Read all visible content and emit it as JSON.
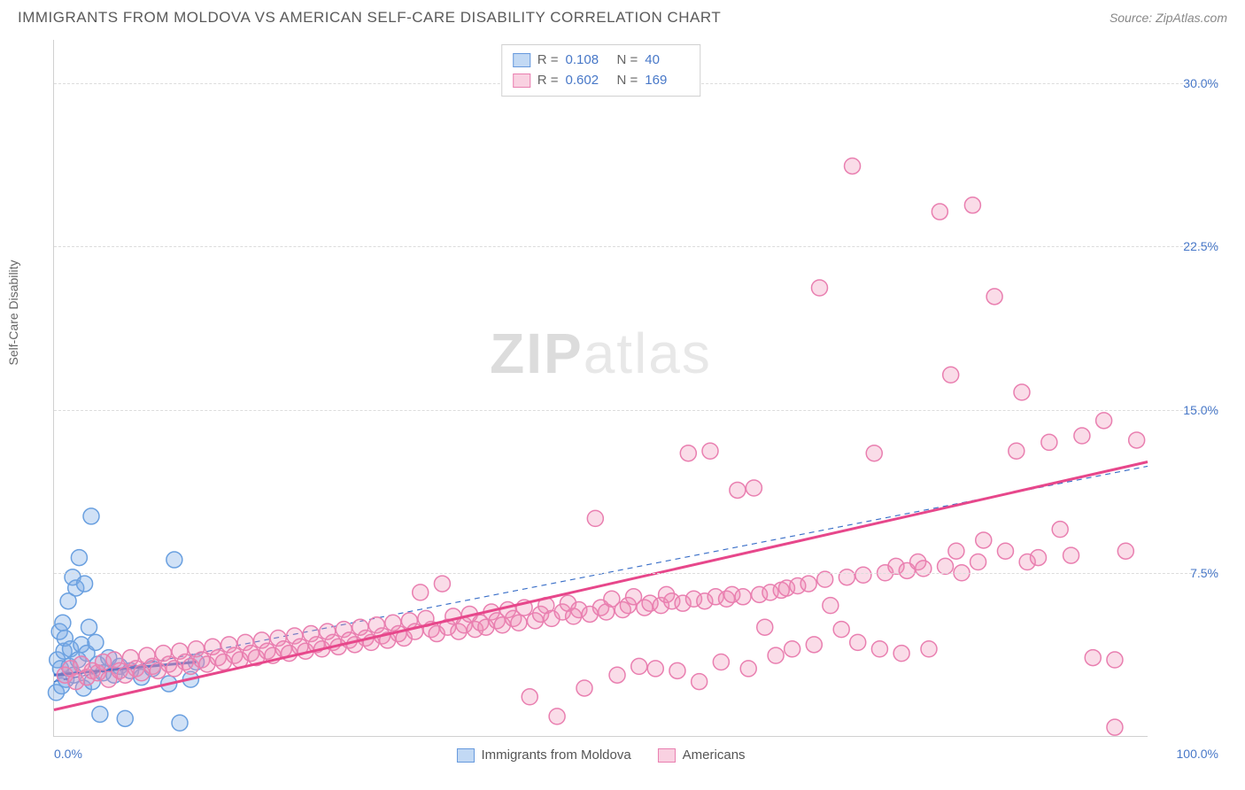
{
  "title": "IMMIGRANTS FROM MOLDOVA VS AMERICAN SELF-CARE DISABILITY CORRELATION CHART",
  "source": "Source: ZipAtlas.com",
  "ylabel": "Self-Care Disability",
  "watermark_zip": "ZIP",
  "watermark_atlas": "atlas",
  "chart": {
    "type": "scatter",
    "xlim": [
      0,
      100
    ],
    "ylim": [
      0,
      32
    ],
    "yticks": [
      {
        "v": 7.5,
        "label": "7.5%"
      },
      {
        "v": 15.0,
        "label": "15.0%"
      },
      {
        "v": 22.5,
        "label": "22.5%"
      },
      {
        "v": 30.0,
        "label": "30.0%"
      }
    ],
    "xticks": {
      "left": "0.0%",
      "right": "100.0%"
    },
    "marker_radius": 9,
    "marker_stroke_width": 1.5,
    "series": [
      {
        "name": "Immigrants from Moldova",
        "color_fill": "rgba(120,170,230,0.35)",
        "color_stroke": "#6aa0e0",
        "R": "0.108",
        "N": "40",
        "trend": {
          "x1": 0,
          "y1": 2.8,
          "x2": 13,
          "y2": 3.4,
          "dash": false,
          "width": 3,
          "color": "#3a6fc8"
        },
        "trend_dash": {
          "x1": 0,
          "y1": 2.5,
          "x2": 100,
          "y2": 12.4,
          "dash": true,
          "width": 1.2,
          "color": "#3a6fc8"
        },
        "points": [
          [
            0.2,
            2.0
          ],
          [
            0.3,
            3.5
          ],
          [
            0.5,
            4.8
          ],
          [
            0.6,
            3.1
          ],
          [
            0.7,
            2.3
          ],
          [
            0.8,
            5.2
          ],
          [
            0.9,
            3.9
          ],
          [
            1.0,
            4.5
          ],
          [
            1.1,
            2.6
          ],
          [
            1.3,
            6.2
          ],
          [
            1.4,
            3.2
          ],
          [
            1.5,
            4.0
          ],
          [
            1.7,
            7.3
          ],
          [
            1.8,
            2.8
          ],
          [
            2.0,
            6.8
          ],
          [
            2.2,
            3.5
          ],
          [
            2.3,
            8.2
          ],
          [
            2.5,
            4.2
          ],
          [
            2.7,
            2.2
          ],
          [
            2.8,
            7.0
          ],
          [
            3.0,
            3.8
          ],
          [
            3.2,
            5.0
          ],
          [
            3.4,
            10.1
          ],
          [
            3.5,
            2.5
          ],
          [
            3.8,
            4.3
          ],
          [
            4.0,
            3.3
          ],
          [
            4.2,
            1.0
          ],
          [
            4.5,
            2.9
          ],
          [
            5.0,
            3.6
          ],
          [
            5.5,
            2.8
          ],
          [
            6.0,
            3.2
          ],
          [
            6.5,
            0.8
          ],
          [
            7.0,
            3.0
          ],
          [
            8.0,
            2.7
          ],
          [
            9.0,
            3.1
          ],
          [
            10.5,
            2.4
          ],
          [
            11.0,
            8.1
          ],
          [
            11.5,
            0.6
          ],
          [
            12.5,
            2.6
          ],
          [
            13.0,
            3.4
          ]
        ]
      },
      {
        "name": "Americans",
        "color_fill": "rgba(240,140,180,0.30)",
        "color_stroke": "#e97fb0",
        "R": "0.602",
        "N": "169",
        "trend": {
          "x1": 0,
          "y1": 1.2,
          "x2": 100,
          "y2": 12.6,
          "dash": false,
          "width": 3,
          "color": "#e7478b"
        },
        "points": [
          [
            1,
            2.8
          ],
          [
            1.5,
            3.1
          ],
          [
            2,
            2.5
          ],
          [
            2.5,
            3.3
          ],
          [
            3,
            2.7
          ],
          [
            3.5,
            3.0
          ],
          [
            4,
            2.9
          ],
          [
            4.5,
            3.4
          ],
          [
            5,
            2.6
          ],
          [
            5.5,
            3.5
          ],
          [
            6,
            3.0
          ],
          [
            6.5,
            2.8
          ],
          [
            7,
            3.6
          ],
          [
            7.5,
            3.1
          ],
          [
            8,
            2.9
          ],
          [
            8.5,
            3.7
          ],
          [
            9,
            3.2
          ],
          [
            9.5,
            3.0
          ],
          [
            10,
            3.8
          ],
          [
            10.5,
            3.3
          ],
          [
            11,
            3.1
          ],
          [
            11.5,
            3.9
          ],
          [
            12,
            3.4
          ],
          [
            12.5,
            3.2
          ],
          [
            13,
            4.0
          ],
          [
            13.5,
            3.5
          ],
          [
            14,
            3.3
          ],
          [
            14.5,
            4.1
          ],
          [
            15,
            3.6
          ],
          [
            15.5,
            3.4
          ],
          [
            16,
            4.2
          ],
          [
            16.5,
            3.7
          ],
          [
            17,
            3.5
          ],
          [
            17.5,
            4.3
          ],
          [
            18,
            3.8
          ],
          [
            18.5,
            3.6
          ],
          [
            19,
            4.4
          ],
          [
            19.5,
            3.9
          ],
          [
            20,
            3.7
          ],
          [
            20.5,
            4.5
          ],
          [
            21,
            4.0
          ],
          [
            21.5,
            3.8
          ],
          [
            22,
            4.6
          ],
          [
            22.5,
            4.1
          ],
          [
            23,
            3.9
          ],
          [
            23.5,
            4.7
          ],
          [
            24,
            4.2
          ],
          [
            24.5,
            4.0
          ],
          [
            25,
            4.8
          ],
          [
            25.5,
            4.3
          ],
          [
            26,
            4.1
          ],
          [
            26.5,
            4.9
          ],
          [
            27,
            4.4
          ],
          [
            27.5,
            4.2
          ],
          [
            28,
            5.0
          ],
          [
            28.5,
            4.5
          ],
          [
            29,
            4.3
          ],
          [
            29.5,
            5.1
          ],
          [
            30,
            4.6
          ],
          [
            30.5,
            4.4
          ],
          [
            31,
            5.2
          ],
          [
            31.5,
            4.7
          ],
          [
            32,
            4.5
          ],
          [
            32.5,
            5.3
          ],
          [
            33,
            4.8
          ],
          [
            33.5,
            6.6
          ],
          [
            34,
            5.4
          ],
          [
            34.5,
            4.9
          ],
          [
            35,
            4.7
          ],
          [
            35.5,
            7.0
          ],
          [
            36,
            5.0
          ],
          [
            36.5,
            5.5
          ],
          [
            37,
            4.8
          ],
          [
            37.5,
            5.1
          ],
          [
            38,
            5.6
          ],
          [
            38.5,
            4.9
          ],
          [
            39,
            5.2
          ],
          [
            39.5,
            5.0
          ],
          [
            40,
            5.7
          ],
          [
            40.5,
            5.3
          ],
          [
            41,
            5.1
          ],
          [
            41.5,
            5.8
          ],
          [
            42,
            5.4
          ],
          [
            42.5,
            5.2
          ],
          [
            43,
            5.9
          ],
          [
            43.5,
            1.8
          ],
          [
            44,
            5.3
          ],
          [
            44.5,
            5.6
          ],
          [
            45,
            6.0
          ],
          [
            45.5,
            5.4
          ],
          [
            46,
            0.9
          ],
          [
            46.5,
            5.7
          ],
          [
            47,
            6.1
          ],
          [
            47.5,
            5.5
          ],
          [
            48,
            5.8
          ],
          [
            48.5,
            2.2
          ],
          [
            49,
            5.6
          ],
          [
            49.5,
            10.0
          ],
          [
            50,
            5.9
          ],
          [
            50.5,
            5.7
          ],
          [
            51,
            6.3
          ],
          [
            51.5,
            2.8
          ],
          [
            52,
            5.8
          ],
          [
            52.5,
            6.0
          ],
          [
            53,
            6.4
          ],
          [
            53.5,
            3.2
          ],
          [
            54,
            5.9
          ],
          [
            54.5,
            6.1
          ],
          [
            55,
            3.1
          ],
          [
            55.5,
            6.0
          ],
          [
            56,
            6.5
          ],
          [
            56.5,
            6.2
          ],
          [
            57,
            3.0
          ],
          [
            57.5,
            6.1
          ],
          [
            58,
            13.0
          ],
          [
            58.5,
            6.3
          ],
          [
            59,
            2.5
          ],
          [
            59.5,
            6.2
          ],
          [
            60,
            13.1
          ],
          [
            60.5,
            6.4
          ],
          [
            61,
            3.4
          ],
          [
            61.5,
            6.3
          ],
          [
            62,
            6.5
          ],
          [
            62.5,
            11.3
          ],
          [
            63,
            6.4
          ],
          [
            63.5,
            3.1
          ],
          [
            64,
            11.4
          ],
          [
            64.5,
            6.5
          ],
          [
            65,
            5.0
          ],
          [
            65.5,
            6.6
          ],
          [
            66,
            3.7
          ],
          [
            66.5,
            6.7
          ],
          [
            67,
            6.8
          ],
          [
            67.5,
            4.0
          ],
          [
            68,
            6.9
          ],
          [
            69,
            7.0
          ],
          [
            69.5,
            4.2
          ],
          [
            70,
            20.6
          ],
          [
            70.5,
            7.2
          ],
          [
            71,
            6.0
          ],
          [
            72,
            4.9
          ],
          [
            72.5,
            7.3
          ],
          [
            73,
            26.2
          ],
          [
            73.5,
            4.3
          ],
          [
            74,
            7.4
          ],
          [
            75,
            13.0
          ],
          [
            75.5,
            4.0
          ],
          [
            76,
            7.5
          ],
          [
            77,
            7.8
          ],
          [
            77.5,
            3.8
          ],
          [
            78,
            7.6
          ],
          [
            79,
            8.0
          ],
          [
            79.5,
            7.7
          ],
          [
            80,
            4.0
          ],
          [
            81,
            24.1
          ],
          [
            81.5,
            7.8
          ],
          [
            82,
            16.6
          ],
          [
            82.5,
            8.5
          ],
          [
            83,
            7.5
          ],
          [
            84,
            24.4
          ],
          [
            84.5,
            8.0
          ],
          [
            85,
            9.0
          ],
          [
            86,
            20.2
          ],
          [
            87,
            8.5
          ],
          [
            88,
            13.1
          ],
          [
            88.5,
            15.8
          ],
          [
            89,
            8.0
          ],
          [
            90,
            8.2
          ],
          [
            91,
            13.5
          ],
          [
            92,
            9.5
          ],
          [
            93,
            8.3
          ],
          [
            94,
            13.8
          ],
          [
            95,
            3.6
          ],
          [
            96,
            14.5
          ],
          [
            97,
            3.5
          ],
          [
            98,
            8.5
          ],
          [
            99,
            13.6
          ],
          [
            97,
            0.4
          ]
        ]
      }
    ],
    "legend_bottom": [
      {
        "swatch": "blue",
        "label": "Immigrants from Moldova"
      },
      {
        "swatch": "pink",
        "label": "Americans"
      }
    ]
  }
}
